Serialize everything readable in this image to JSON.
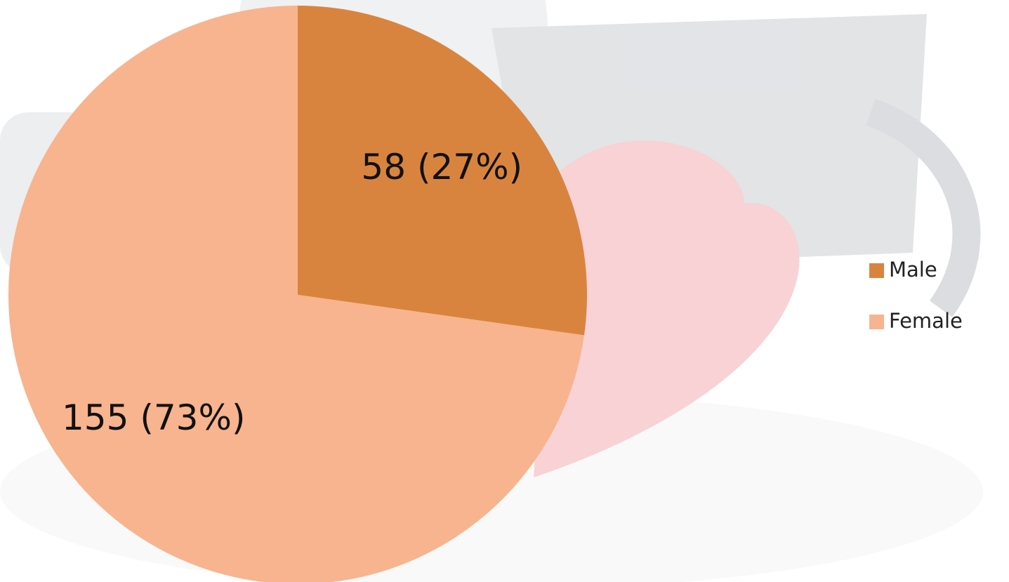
{
  "chart_data": {
    "type": "pie",
    "categories": [
      "Male",
      "Female"
    ],
    "values": [
      58,
      155
    ],
    "value_labels": [
      "58 (27%)",
      "155 (73%)"
    ],
    "colors": [
      "#d9843e",
      "#f8b48e"
    ],
    "legend": "right"
  }
}
